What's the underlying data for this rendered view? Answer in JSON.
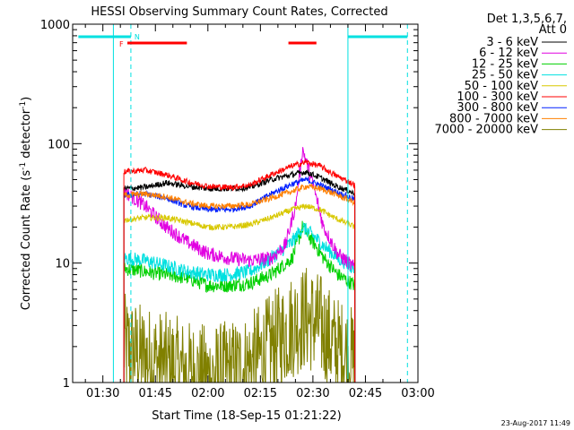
{
  "chart_data": {
    "type": "line",
    "title": "HESSI Observing Summary Count Rates, Corrected",
    "xlabel": "Start Time (18-Sep-15 01:21:22)",
    "ylabel_main": "Corrected Count Rate (s",
    "ylabel_sup1": "-1",
    "ylabel_mid": " detector",
    "ylabel_sup2": "-1",
    "ylabel_end": ")",
    "ylabel": "Corrected Count Rate (s-1 detector-1)",
    "yscale": "log",
    "ylim": [
      1,
      1000
    ],
    "xlim": [
      "01:21:22",
      "03:00"
    ],
    "x_ticks": [
      "01:30",
      "01:45",
      "02:00",
      "02:15",
      "02:30",
      "02:45",
      "03:00"
    ],
    "y_ticks": [
      "1",
      "10",
      "100",
      "1000"
    ],
    "legend_header": [
      "Det 1,3,5,6,7,",
      "Att 0"
    ],
    "series": [
      {
        "name": "3 - 6 keV",
        "color": "#000000",
        "x": [
          "01:36",
          "01:42",
          "01:48",
          "01:54",
          "02:00",
          "02:06",
          "02:12",
          "02:18",
          "02:24",
          "02:28",
          "02:32",
          "02:36",
          "02:42"
        ],
        "values": [
          42,
          43,
          47,
          44,
          42,
          42,
          43,
          50,
          55,
          58,
          52,
          45,
          38
        ]
      },
      {
        "name": "6 - 12 keV",
        "color": "#e100e1",
        "x": [
          "01:36",
          "01:42",
          "01:48",
          "01:54",
          "02:00",
          "02:06",
          "02:12",
          "02:18",
          "02:22",
          "02:25",
          "02:27",
          "02:30",
          "02:33",
          "02:37",
          "02:42"
        ],
        "values": [
          40,
          30,
          20,
          15,
          12,
          11,
          10.5,
          11,
          14,
          30,
          90,
          45,
          20,
          12,
          9
        ]
      },
      {
        "name": "12 - 25 keV",
        "color": "#00d000",
        "x": [
          "01:36",
          "01:42",
          "01:48",
          "01:54",
          "02:00",
          "02:06",
          "02:12",
          "02:18",
          "02:24",
          "02:27",
          "02:30",
          "02:33",
          "02:37",
          "02:42"
        ],
        "values": [
          9,
          8.5,
          8,
          7.5,
          6.5,
          6.5,
          6.8,
          8,
          11,
          20,
          15,
          11,
          8,
          6.5
        ]
      },
      {
        "name": "25 - 50 keV",
        "color": "#00e0e0",
        "x": [
          "01:36",
          "01:42",
          "01:48",
          "01:54",
          "02:00",
          "02:06",
          "02:12",
          "02:18",
          "02:24",
          "02:27",
          "02:30",
          "02:33",
          "02:37",
          "02:42"
        ],
        "values": [
          11,
          10.5,
          9.5,
          8.5,
          8,
          8,
          8.5,
          11,
          15,
          20,
          17,
          14,
          11,
          9
        ]
      },
      {
        "name": "50 - 100 keV",
        "color": "#d8c800",
        "x": [
          "01:36",
          "01:42",
          "01:48",
          "01:54",
          "02:00",
          "02:06",
          "02:12",
          "02:18",
          "02:24",
          "02:28",
          "02:32",
          "02:36",
          "02:42"
        ],
        "values": [
          23,
          24,
          24,
          22,
          20,
          20,
          21,
          24,
          28,
          30,
          28,
          24,
          20
        ]
      },
      {
        "name": "100 - 300 keV",
        "color": "#ff0000",
        "x": [
          "01:36",
          "01:42",
          "01:48",
          "01:54",
          "02:00",
          "02:06",
          "02:12",
          "02:18",
          "02:24",
          "02:28",
          "02:32",
          "02:36",
          "02:42"
        ],
        "values": [
          58,
          60,
          55,
          48,
          44,
          43,
          45,
          55,
          65,
          70,
          65,
          55,
          45
        ]
      },
      {
        "name": "300 - 800 keV",
        "color": "#0020ff",
        "x": [
          "01:36",
          "01:42",
          "01:48",
          "01:54",
          "02:00",
          "02:06",
          "02:12",
          "02:18",
          "02:24",
          "02:28",
          "02:32",
          "02:36",
          "02:42"
        ],
        "values": [
          37,
          38,
          35,
          30,
          28,
          28,
          30,
          38,
          46,
          50,
          45,
          40,
          34
        ]
      },
      {
        "name": "800 - 7000 keV",
        "color": "#ff8000",
        "x": [
          "01:36",
          "01:42",
          "01:48",
          "01:54",
          "02:00",
          "02:06",
          "02:12",
          "02:18",
          "02:24",
          "02:28",
          "02:32",
          "02:36",
          "02:42"
        ],
        "values": [
          37,
          38,
          36,
          32,
          30,
          30,
          31,
          35,
          40,
          44,
          42,
          38,
          32
        ]
      },
      {
        "name": "7000 - 20000 keV",
        "color": "#808000",
        "x": [
          "01:36",
          "01:42",
          "01:48",
          "01:54",
          "02:00",
          "02:06",
          "02:12",
          "02:18",
          "02:24",
          "02:28",
          "02:32",
          "02:36",
          "02:42"
        ],
        "values": [
          2,
          1.6,
          1.4,
          1.2,
          1.1,
          1.2,
          1.4,
          2,
          3,
          3.5,
          3,
          2,
          1.5
        ]
      }
    ],
    "flag_F": {
      "label": "F",
      "color": "#ff0000",
      "ranges": [
        [
          "01:37",
          "01:54"
        ],
        [
          "02:23",
          "02:31"
        ]
      ]
    },
    "flag_N": {
      "label": "N",
      "color": "#00e0e0",
      "ranges": [
        [
          "01:23",
          "01:38"
        ],
        [
          "02:40",
          "02:57"
        ]
      ]
    },
    "night_boundaries_solid": [
      "01:33",
      "02:40"
    ],
    "night_boundaries_dashed": [
      "01:38",
      "02:57"
    ],
    "grid": false,
    "legend_position": "right"
  },
  "footer": {
    "date": "23-Aug-2017 11:49"
  }
}
